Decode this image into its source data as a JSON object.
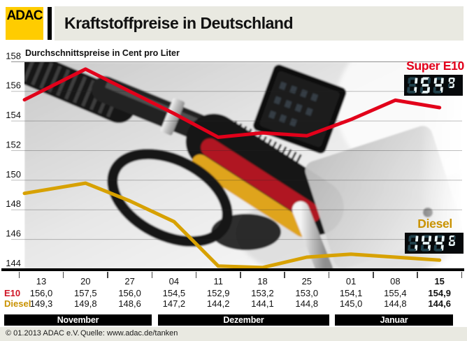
{
  "header": {
    "brand": "ADAC",
    "title": "Kraftstoffpreise in Deutschland"
  },
  "chart": {
    "subtitle": "Durchschnittspreise in Cent pro Liter",
    "y_ticks": [
      158,
      156,
      154,
      152,
      150,
      148,
      146,
      144
    ]
  },
  "chart_data": {
    "type": "line",
    "title": "Kraftstoffpreise in Deutschland",
    "subtitle": "Durchschnittspreise in Cent pro Liter",
    "categories": [
      "13",
      "20",
      "27",
      "04",
      "11",
      "18",
      "25",
      "01",
      "08",
      "15"
    ],
    "month_groups": [
      {
        "label": "November",
        "span": 3
      },
      {
        "label": "Dezember",
        "span": 4
      },
      {
        "label": "Januar",
        "span": 3
      }
    ],
    "series": [
      {
        "name": "Super E10",
        "short_name": "E10",
        "color": "#e2001a",
        "values": [
          156.0,
          157.5,
          156.0,
          154.5,
          152.9,
          153.2,
          153.0,
          154.1,
          155.4,
          154.9
        ]
      },
      {
        "name": "Diesel",
        "short_name": "Diesel",
        "color": "#d7a100",
        "values": [
          149.3,
          149.8,
          148.6,
          147.2,
          144.2,
          144.1,
          144.8,
          145.0,
          144.8,
          144.6
        ]
      }
    ],
    "ylim": [
      144,
      158
    ],
    "grid": true,
    "unit": "Cent pro Liter",
    "legend_position": "right-inline"
  },
  "displays": {
    "e10": {
      "label": "Super E10",
      "int_digits": "154",
      "sup_digit": "9",
      "value": "154,9"
    },
    "diesel": {
      "label": "Diesel",
      "int_digits": "144",
      "sup_digit": "6",
      "value": "144,6"
    }
  },
  "table": {
    "dates": [
      "13",
      "20",
      "27",
      "04",
      "11",
      "18",
      "25",
      "01",
      "08",
      "15"
    ],
    "e10_label": "E10",
    "diesel_label": "Diesel",
    "e10_values": [
      "156,0",
      "157,5",
      "156,0",
      "154,5",
      "152,9",
      "153,2",
      "153,0",
      "154,1",
      "155,4",
      "154,9"
    ],
    "diesel_values": [
      "149,3",
      "149,8",
      "148,6",
      "147,2",
      "144,2",
      "144,1",
      "144,8",
      "145,0",
      "144,8",
      "144,6"
    ]
  },
  "months": [
    "November",
    "Dezember",
    "Januar"
  ],
  "footer": {
    "copyright": "© 01.2013  ADAC e.V.",
    "source": "Quelle: www.adac.de/tanken"
  },
  "colors": {
    "adac_yellow": "#ffcc00",
    "e10_red": "#e2001a",
    "diesel_gold": "#d7a100",
    "bar_bg": "#e9e9e1",
    "lcd_background": "#06090b",
    "lcd_lit": "#e8f4f6",
    "lcd_unlit": "#21424d"
  }
}
